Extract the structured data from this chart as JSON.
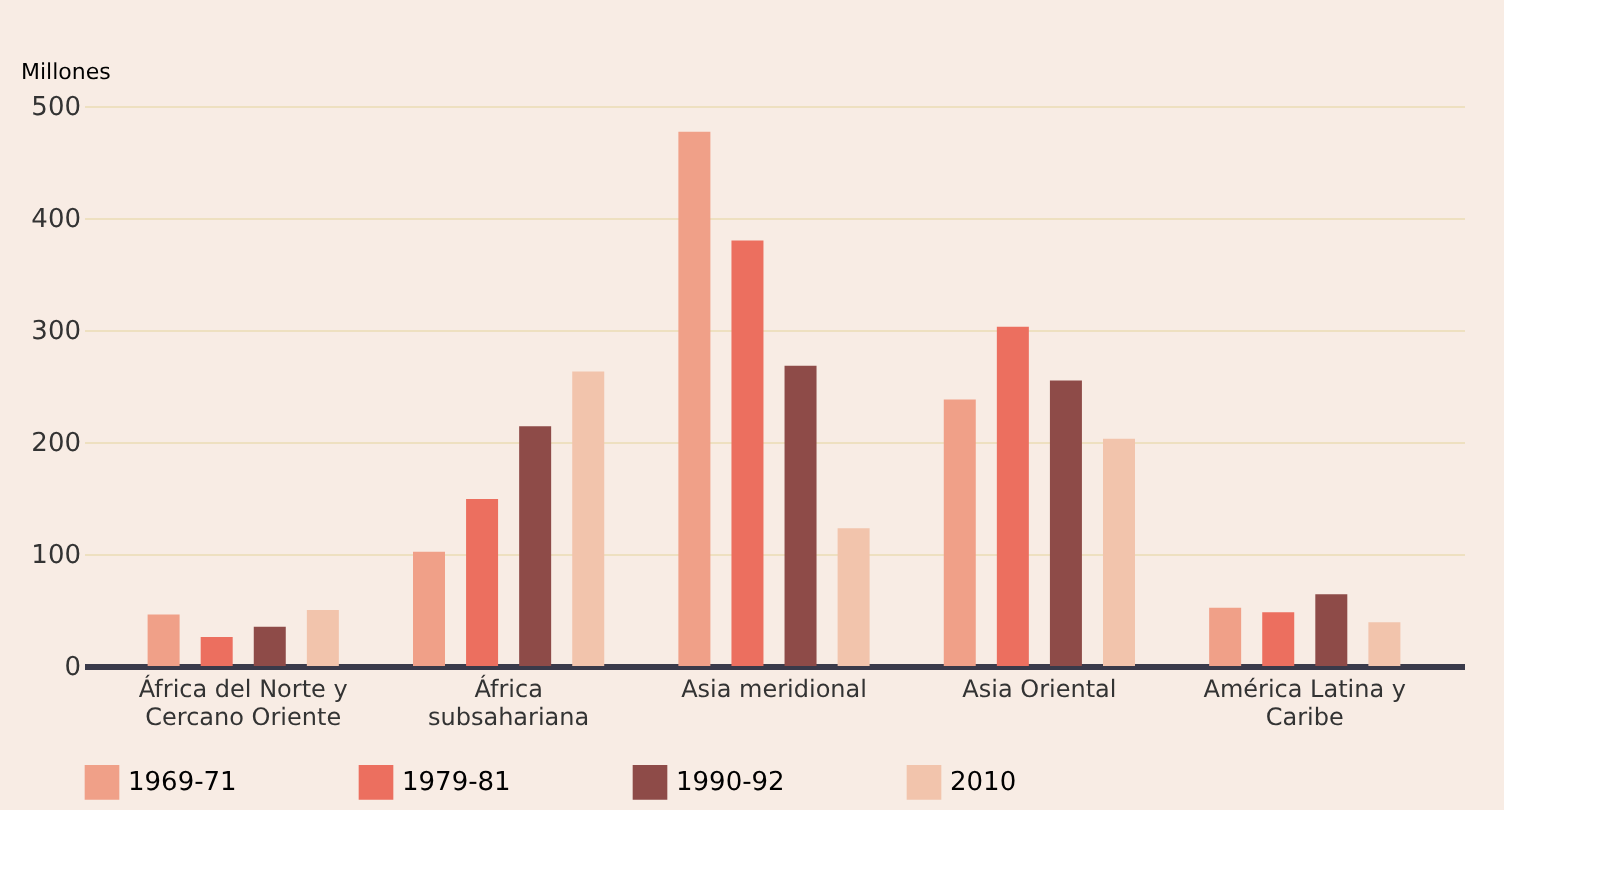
{
  "chart_data": {
    "type": "bar",
    "ylabel": "Millones",
    "categories": [
      "África del Norte y Cercano Oriente",
      "África subsahariana",
      "Asia meridional",
      "Asia Oriental",
      "América Latina y Caribe"
    ],
    "series": [
      {
        "name": "1969-71",
        "color": "#f0a088",
        "values": [
          46,
          102,
          477,
          238,
          52
        ]
      },
      {
        "name": "1979-81",
        "color": "#ec6f5f",
        "values": [
          26,
          149,
          380,
          303,
          48
        ]
      },
      {
        "name": "1990-92",
        "color": "#8e4b48",
        "values": [
          35,
          214,
          268,
          255,
          64
        ]
      },
      {
        "name": "2010",
        "color": "#f2c4ac",
        "values": [
          50,
          263,
          123,
          203,
          39
        ]
      }
    ],
    "ylim": [
      0,
      500
    ],
    "yticks": [
      0,
      100,
      200,
      300,
      400,
      500
    ],
    "grid": "y",
    "legend": "bottom"
  }
}
